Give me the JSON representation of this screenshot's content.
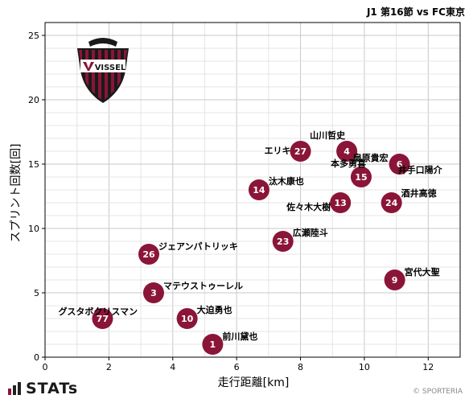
{
  "chart_data": {
    "type": "scatter",
    "title": "J1 第16節 vs FC東京",
    "xlabel": "走行距離[km]",
    "ylabel": "スプリント回数[回]",
    "xlim": [
      0,
      13
    ],
    "ylim": [
      0,
      26
    ],
    "xticks": [
      0,
      2,
      4,
      6,
      8,
      10,
      12
    ],
    "yticks": [
      0,
      5,
      10,
      15,
      20,
      25
    ],
    "grid": true,
    "marker_color": "#8a1538",
    "points": [
      {
        "number": "1",
        "name": "前川黛也",
        "x": 5.25,
        "y": 1
      },
      {
        "number": "3",
        "name": "マテウストゥーレル",
        "x": 3.4,
        "y": 5
      },
      {
        "number": "4",
        "name": "山川哲史",
        "x": 9.45,
        "y": 16
      },
      {
        "number": "6",
        "name": "井手口陽介",
        "x": 11.1,
        "y": 15
      },
      {
        "number": "9",
        "name": "宮代大聖",
        "x": 10.95,
        "y": 6
      },
      {
        "number": "10",
        "name": "大迫勇也",
        "x": 4.45,
        "y": 3
      },
      {
        "number": "13",
        "name": "佐々木大樹",
        "x": 9.25,
        "y": 12
      },
      {
        "number": "14",
        "name": "汰木康也",
        "x": 6.7,
        "y": 13
      },
      {
        "number": "15",
        "name": "本多勇喜",
        "x": 9.9,
        "y": 14
      },
      {
        "number": "23",
        "name": "広瀬陸斗",
        "x": 7.45,
        "y": 9
      },
      {
        "number": "24",
        "name": "酒井高徳",
        "x": 10.85,
        "y": 12
      },
      {
        "number": "26",
        "name": "ジェアンパトリッキ",
        "x": 3.25,
        "y": 8
      },
      {
        "number": "27",
        "name": "エリキ",
        "x": 8.0,
        "y": 16
      },
      {
        "number": "77",
        "name": "グスタボクリスマン",
        "x": 1.8,
        "y": 3
      },
      {
        "number": "",
        "name": "扇原貴宏",
        "x": 11.05,
        "y": 15
      }
    ]
  },
  "logo": {
    "text": "VISSEL"
  },
  "footer": {
    "brand": "STATs",
    "credit": "© SPORTERIA"
  }
}
